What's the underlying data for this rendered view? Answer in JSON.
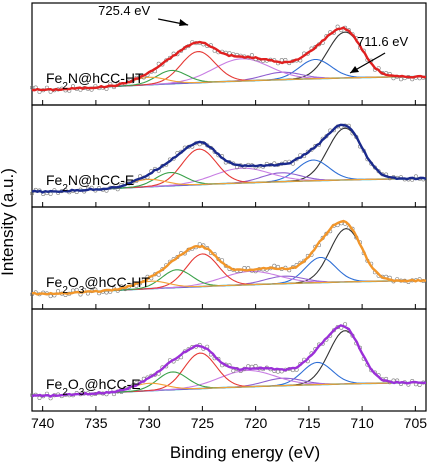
{
  "chart_data": {
    "type": "line",
    "xlabel": "Binding energy (eV)",
    "ylabel": "Intensity (a.u.)",
    "xlim": [
      741,
      704
    ],
    "x_reversed": true,
    "xticks": [
      740,
      735,
      730,
      725,
      720,
      715,
      710,
      705
    ],
    "grid": false,
    "legend": "none",
    "curve_colors": {
      "baseline": "#21b7c6",
      "fit_711": "#333333",
      "fit_714": "#2f6fd6",
      "fit_717": "#8f5fd0",
      "fit_721": "#c87de3",
      "fit_725": "#e53935",
      "fit_728": "#3aa14a",
      "fit_730": "#f2a23a",
      "raw_points": "#7a7a7a"
    },
    "panels": [
      {
        "label_main": "Fe",
        "label_sub": "2",
        "label_rest": "N@hCC-HT",
        "envelope_color": "#e02020",
        "annotations": [
          {
            "text": "725.4 eV",
            "x": 725.4,
            "direction": "arrow-right"
          },
          {
            "text": "711.6 eV",
            "x": 711.6,
            "direction": "arrow-down-left"
          }
        ],
        "peaks": [
          {
            "center": 711.6,
            "height": 0.62,
            "width": 1.6
          },
          {
            "center": 714.4,
            "height": 0.26,
            "width": 1.5
          },
          {
            "center": 717.5,
            "height": 0.1,
            "width": 1.8
          },
          {
            "center": 721.3,
            "height": 0.3,
            "width": 2.6
          },
          {
            "center": 725.4,
            "height": 0.42,
            "width": 1.6
          },
          {
            "center": 727.9,
            "height": 0.18,
            "width": 1.4
          },
          {
            "center": 730.0,
            "height": 0.1,
            "width": 1.6
          }
        ]
      },
      {
        "label_main": "Fe",
        "label_sub": "2",
        "label_rest": "N@hCC-E",
        "envelope_color": "#1a2a8c",
        "annotations": [],
        "peaks": [
          {
            "center": 711.6,
            "height": 0.7,
            "width": 1.6
          },
          {
            "center": 714.6,
            "height": 0.28,
            "width": 1.5
          },
          {
            "center": 717.6,
            "height": 0.12,
            "width": 1.8
          },
          {
            "center": 721.3,
            "height": 0.2,
            "width": 2.6
          },
          {
            "center": 725.3,
            "height": 0.48,
            "width": 1.6
          },
          {
            "center": 728.0,
            "height": 0.18,
            "width": 1.4
          },
          {
            "center": 730.1,
            "height": 0.1,
            "width": 1.6
          }
        ]
      },
      {
        "label_main": "Fe",
        "label_sub": "2",
        "label_mid": "O",
        "label_sub2": "3",
        "label_rest": "@hCC-HT",
        "envelope_color": "#f2962a",
        "annotations": [],
        "peaks": [
          {
            "center": 711.5,
            "height": 0.72,
            "width": 1.5
          },
          {
            "center": 713.9,
            "height": 0.34,
            "width": 1.4
          },
          {
            "center": 717.3,
            "height": 0.1,
            "width": 1.8
          },
          {
            "center": 720.5,
            "height": 0.18,
            "width": 2.6
          },
          {
            "center": 725.0,
            "height": 0.44,
            "width": 1.5
          },
          {
            "center": 727.4,
            "height": 0.24,
            "width": 1.4
          },
          {
            "center": 729.8,
            "height": 0.1,
            "width": 1.6
          }
        ]
      },
      {
        "label_main": "Fe",
        "label_sub": "2",
        "label_mid": "O",
        "label_sub2": "3",
        "label_rest": "@hCC-E",
        "envelope_color": "#9b30d8",
        "annotations": [],
        "peaks": [
          {
            "center": 711.6,
            "height": 0.72,
            "width": 1.5
          },
          {
            "center": 714.2,
            "height": 0.3,
            "width": 1.4
          },
          {
            "center": 717.4,
            "height": 0.1,
            "width": 1.8
          },
          {
            "center": 720.8,
            "height": 0.22,
            "width": 2.6
          },
          {
            "center": 725.2,
            "height": 0.48,
            "width": 1.5
          },
          {
            "center": 727.8,
            "height": 0.24,
            "width": 1.4
          },
          {
            "center": 730.0,
            "height": 0.1,
            "width": 1.6
          }
        ]
      }
    ]
  }
}
